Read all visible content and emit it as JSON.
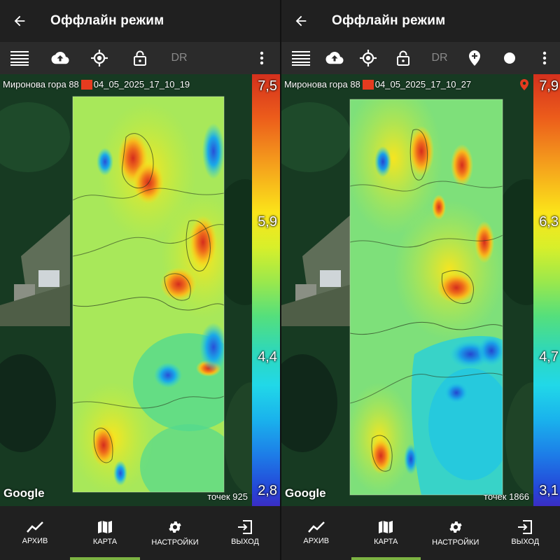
{
  "screens": [
    {
      "app_title": "Оффлайн режим",
      "toolbar": {
        "icons": [
          "menu-lines-icon",
          "cloud-upload-icon",
          "gps-target-icon",
          "lock-open-icon"
        ],
        "dr_label": "DR"
      },
      "map": {
        "site_name": "Миронова гора 88",
        "session_id": "04_05_2025_17_10_19",
        "points_label": "точек 925",
        "google_label": "Google",
        "scale_labels": [
          "7,5",
          "5,9",
          "4,4",
          "2,8"
        ]
      }
    },
    {
      "app_title": "Оффлайн режим",
      "toolbar": {
        "icons": [
          "menu-lines-icon",
          "cloud-upload-icon",
          "gps-target-icon",
          "lock-open-icon",
          "add-marker-icon",
          "record-dot-icon"
        ],
        "dr_label": "DR"
      },
      "map": {
        "site_name": "Миронова гора 88",
        "session_id": "04_05_2025_17_10_27",
        "points_label": "точек 1866",
        "google_label": "Google",
        "scale_labels": [
          "7,9",
          "6,3",
          "4,7",
          "3,1"
        ]
      }
    }
  ],
  "nav": {
    "items": [
      {
        "label": "АРХИВ",
        "icon": "chart-line-icon"
      },
      {
        "label": "КАРТА",
        "icon": "map-icon",
        "active": true
      },
      {
        "label": "НАСТРОЙКИ",
        "icon": "gear-icon"
      },
      {
        "label": "ВЫХОД",
        "icon": "exit-icon"
      }
    ]
  },
  "colors": {
    "accent_underline": "#7cb342",
    "record_marker": "#e53b1f",
    "appbar": "#202020",
    "toolbar": "#2b2b2b"
  }
}
